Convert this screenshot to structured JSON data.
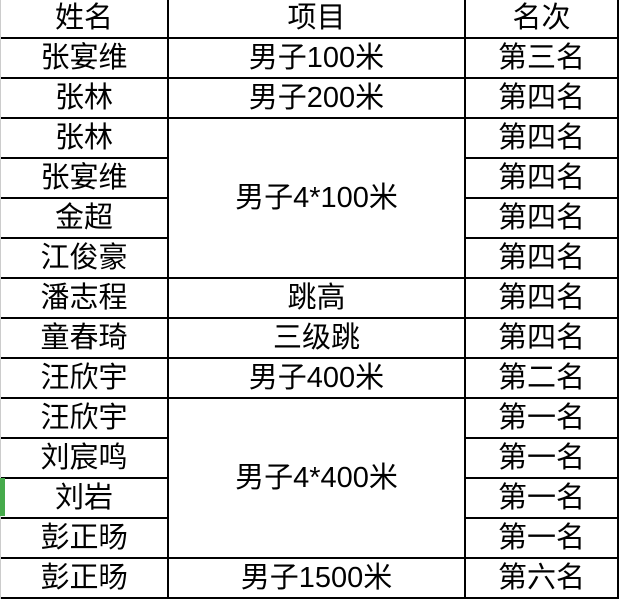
{
  "table": {
    "headers": [
      {
        "label": "姓名"
      },
      {
        "label": "项目"
      },
      {
        "label": "名次"
      }
    ],
    "rows": [
      {
        "name": "张宴维",
        "event": "男子100米",
        "rank": "第三名"
      },
      {
        "name": "张林",
        "event": "男子200米",
        "rank": "第四名"
      },
      {
        "name": "张林",
        "event": "男子4*100米",
        "event_rowspan": 4,
        "rank": "第四名"
      },
      {
        "name": "张宴维",
        "event": null,
        "rank": "第四名"
      },
      {
        "name": "金超",
        "event": null,
        "rank": "第四名"
      },
      {
        "name": "江俊豪",
        "event": null,
        "rank": "第四名"
      },
      {
        "name": "潘志程",
        "event": "跳高",
        "rank": "第四名"
      },
      {
        "name": "童春琦",
        "event": "三级跳",
        "rank": "第四名"
      },
      {
        "name": "汪欣宇",
        "event": "男子400米",
        "rank": "第二名"
      },
      {
        "name": "汪欣宇",
        "event": "男子4*400米",
        "event_rowspan": 4,
        "rank": "第一名"
      },
      {
        "name": "刘宸鸣",
        "event": null,
        "rank": "第一名"
      },
      {
        "name": "刘岩",
        "event": null,
        "rank": "第一名"
      },
      {
        "name": "彭正旸",
        "event": null,
        "rank": "第一名"
      },
      {
        "name": "彭正旸",
        "event": "男子1500米",
        "rank": "第六名"
      }
    ],
    "selected_row_index": 11,
    "colors": {
      "grid_border": "#000000",
      "selection_green": "#46aa4b",
      "cropped_edge_gray": "#cccccc"
    },
    "layout": {
      "header_row_height": 38,
      "data_row_height": 40
    }
  }
}
